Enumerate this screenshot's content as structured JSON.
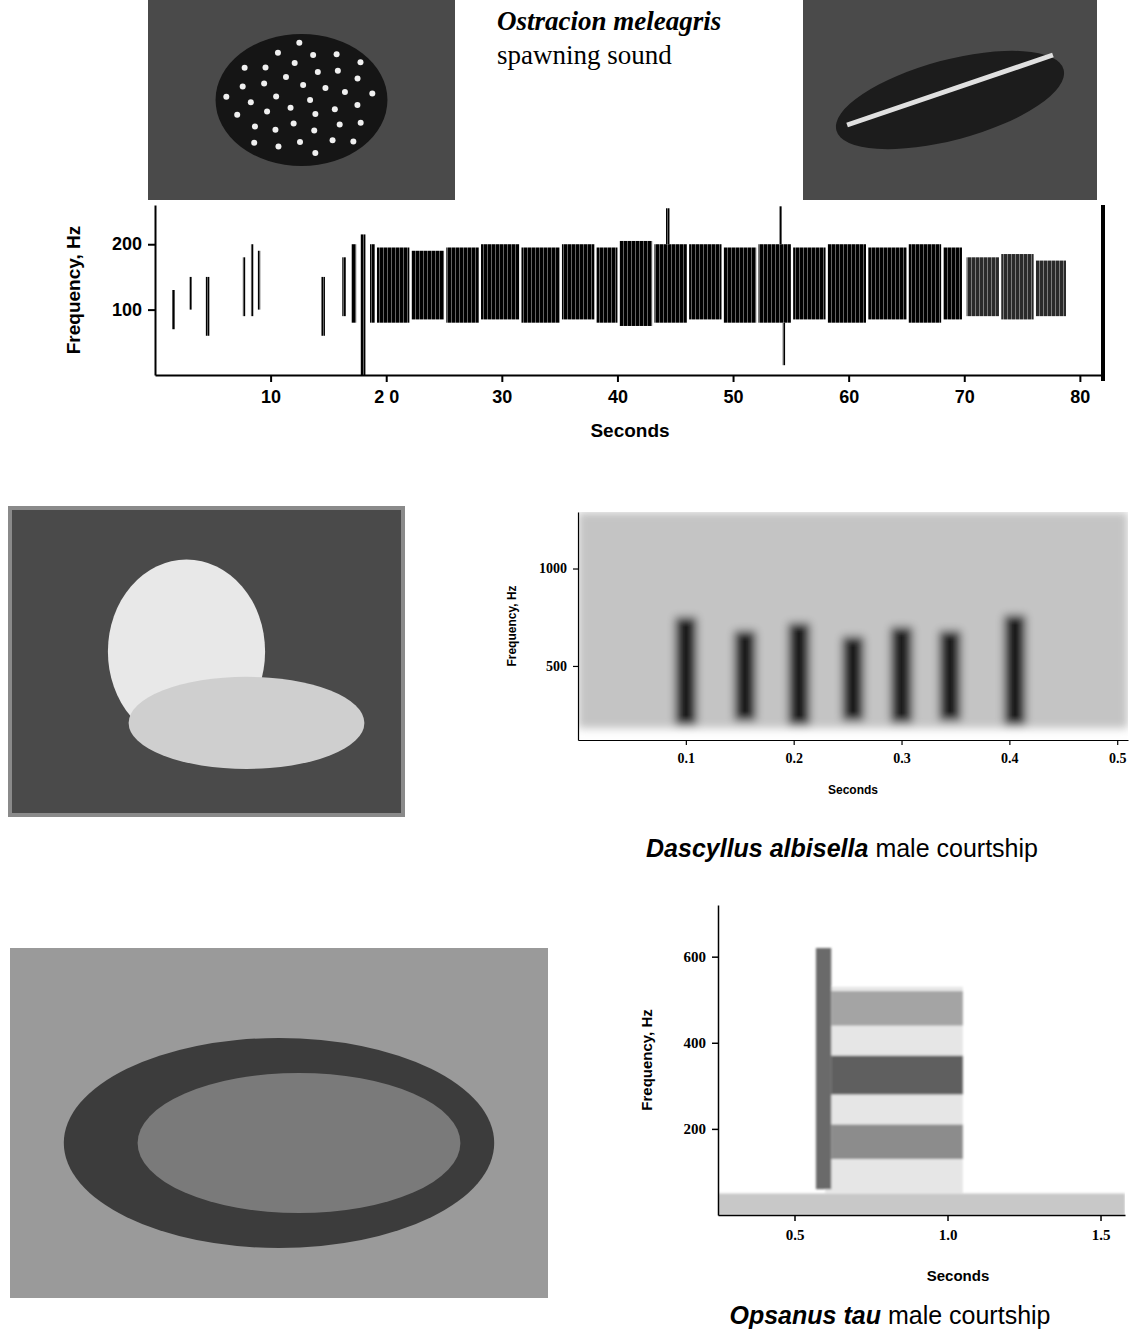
{
  "chart_data": [
    {
      "type": "spectrogram",
      "title": "Ostracion meleagris",
      "subtitle": "spawning sound",
      "xlabel": "Seconds",
      "ylabel": "Frequency, Hz",
      "xlim": [
        0,
        82
      ],
      "ylim": [
        0,
        260
      ],
      "xticks": [
        10,
        {
          "value": 20,
          "label": "2 0"
        },
        30,
        40,
        50,
        60,
        70,
        80
      ],
      "yticks": [
        100,
        200
      ],
      "x_start": [
        1.5,
        3.0,
        4.4,
        7.6,
        8.3,
        8.9,
        14.4,
        16.2,
        17.0,
        17.8,
        18.6,
        19.2,
        22.2,
        25.2,
        28.2,
        31.7,
        35.2,
        38.2,
        40.2,
        43.2,
        46.2,
        49.2,
        52.2,
        55.2,
        58.2,
        61.7,
        65.2,
        68.2,
        44.2,
        54.0,
        54.3,
        70.2,
        73.2,
        76.2
      ],
      "x_end": [
        1.7,
        3.2,
        4.7,
        7.8,
        8.5,
        9.1,
        14.7,
        16.5,
        17.4,
        18.2,
        19.0,
        22.0,
        25.0,
        28.0,
        31.5,
        35.0,
        38.0,
        40.0,
        43.0,
        46.0,
        49.0,
        52.0,
        55.0,
        58.0,
        61.5,
        65.0,
        68.0,
        69.8,
        44.5,
        54.2,
        54.5,
        73.0,
        76.0,
        78.8
      ],
      "y_low": [
        70,
        100,
        60,
        90,
        90,
        100,
        60,
        90,
        80,
        0,
        80,
        80,
        85,
        80,
        85,
        80,
        85,
        80,
        75,
        80,
        85,
        80,
        80,
        85,
        80,
        85,
        80,
        85,
        200,
        200,
        15,
        90,
        85,
        90
      ],
      "y_high": [
        130,
        150,
        150,
        180,
        200,
        190,
        150,
        180,
        200,
        215,
        200,
        195,
        190,
        195,
        200,
        195,
        200,
        195,
        205,
        200,
        200,
        195,
        200,
        195,
        200,
        195,
        200,
        195,
        255,
        258,
        80,
        180,
        185,
        175
      ],
      "colors": [
        "#000000",
        "#000000",
        "#000000",
        "#000000",
        "#000000",
        "#000000",
        "#000000",
        "#000000",
        "#000000",
        "#000000",
        "#000000",
        "#000000",
        "#000000",
        "#000000",
        "#000000",
        "#000000",
        "#000000",
        "#000000",
        "#000000",
        "#000000",
        "#000000",
        "#000000",
        "#000000",
        "#000000",
        "#000000",
        "#000000",
        "#000000",
        "#000000",
        "#000000",
        "#000000",
        "#000000",
        "#2a2a2a",
        "#2a2a2a",
        "#2a2a2a"
      ]
    },
    {
      "type": "spectrogram",
      "title": "Dascyllus albisella",
      "subtitle": "male courtship",
      "xlabel": "Seconds",
      "ylabel": "Frequency, Hz",
      "xlim": [
        0,
        0.51
      ],
      "ylim": [
        120,
        1290
      ],
      "xticks": [
        0.1,
        0.2,
        0.3,
        0.4,
        0.5
      ],
      "yticks": [
        500,
        1000
      ],
      "x_start": [
        0,
        0.09,
        0.145,
        0.195,
        0.245,
        0.29,
        0.335,
        0.395
      ],
      "x_end": [
        0.51,
        0.11,
        0.165,
        0.215,
        0.265,
        0.31,
        0.355,
        0.415
      ],
      "y_low": [
        180,
        200,
        220,
        200,
        220,
        210,
        220,
        200
      ],
      "y_high": [
        1290,
        750,
        680,
        720,
        650,
        700,
        680,
        760
      ],
      "colors": [
        "#c4c4c4",
        "#1a1a1a",
        "#1a1a1a",
        "#1a1a1a",
        "#1a1a1a",
        "#1a1a1a",
        "#1a1a1a",
        "#1a1a1a"
      ]
    },
    {
      "type": "spectrogram",
      "title": "Opsanus tau",
      "subtitle": "male courtship",
      "xlabel": "Seconds",
      "ylabel": "Frequency, Hz",
      "xlim": [
        0.25,
        1.58
      ],
      "ylim": [
        0,
        720
      ],
      "xticks": [
        0.5,
        {
          "value": 1,
          "label": "1.0"
        },
        1.5
      ],
      "yticks": [
        200,
        400,
        600
      ],
      "x_start": [
        0.25,
        0.6,
        0.57,
        0.62,
        0.62,
        0.62
      ],
      "x_end": [
        1.58,
        1.05,
        0.62,
        1.05,
        1.05,
        1.05
      ],
      "y_low": [
        0,
        50,
        60,
        130,
        280,
        440
      ],
      "y_high": [
        50,
        530,
        620,
        210,
        370,
        520
      ],
      "colors": [
        "#c8c8c8",
        "#e6e6e6",
        "#6a6a6a",
        "#8c8c8c",
        "#5e5e5e",
        "#a4a4a4"
      ]
    }
  ]
}
